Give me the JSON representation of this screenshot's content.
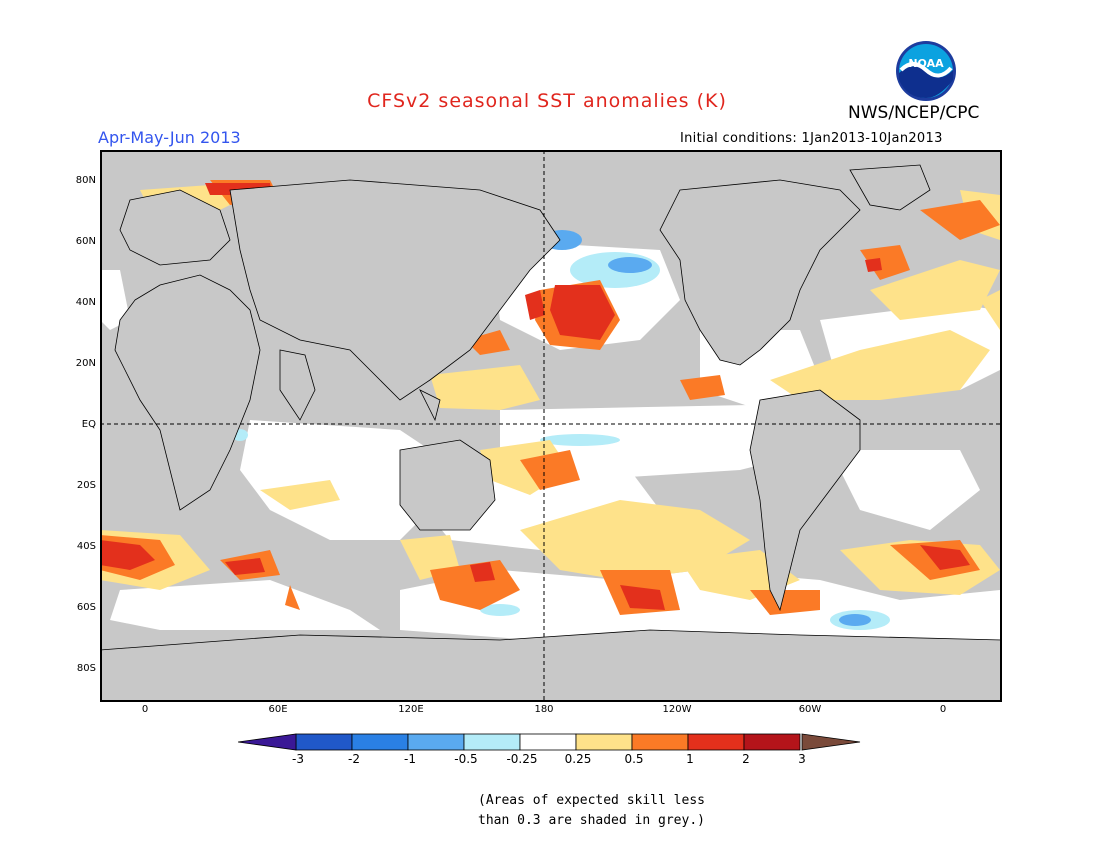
{
  "header": {
    "title": "CFSv2 seasonal SST anomalies (K)",
    "season": "Apr-May-Jun 2013",
    "organization": "NWS/NCEP/CPC",
    "initial_conditions": "Initial conditions: 1Jan2013-10Jan2013",
    "logo_text": "NOAA"
  },
  "map": {
    "lat_labels": [
      "80N",
      "60N",
      "40N",
      "20N",
      "EQ",
      "20S",
      "40S",
      "60S",
      "80S"
    ],
    "lon_labels": [
      "0",
      "60E",
      "120E",
      "180",
      "120W",
      "60W",
      "0"
    ],
    "colors": {
      "masked_grey": "#c8c8c8",
      "neutral": "#ffffff",
      "pos_025_05": "#fee28a",
      "pos_05_1": "#fb7a26",
      "pos_1_2": "#e3301c",
      "pos_2_3": "#b4141a",
      "neg_05_025": "#b4ecf8",
      "neg_1_05": "#5aaaf0"
    }
  },
  "colorbar": {
    "labels": [
      "-3",
      "-2",
      "-1",
      "-0.5",
      "-0.25",
      "0.25",
      "0.5",
      "1",
      "2",
      "3"
    ],
    "colors": [
      "#3a1896",
      "#2058c8",
      "#2a80e4",
      "#5aaaf0",
      "#b4ecf8",
      "#ffffff",
      "#fee28a",
      "#fb7a26",
      "#e3301c",
      "#b4141a"
    ],
    "under_color": "#3a1896",
    "over_color": "#7a4a3a"
  },
  "note": {
    "line1": "(Areas of expected skill less",
    "line2": "than 0.3 are shaded in grey.)"
  }
}
